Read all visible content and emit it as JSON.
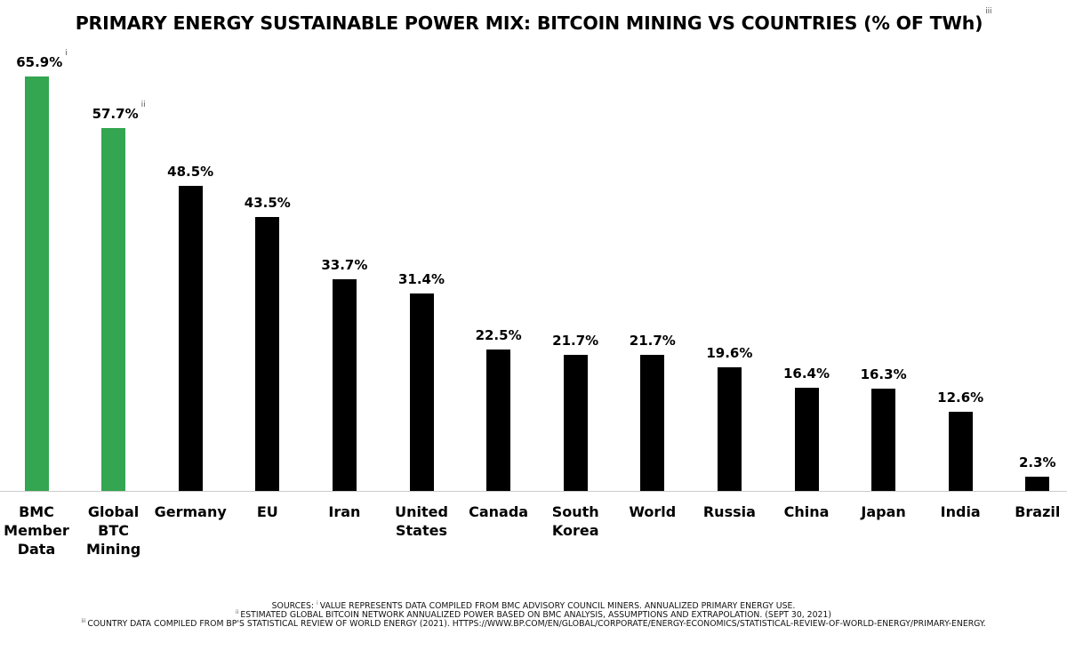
{
  "chart_data": {
    "type": "bar",
    "title": "PRIMARY ENERGY SUSTAINABLE POWER MIX: BITCOIN MINING VS COUNTRIES (% OF TWh)",
    "title_note": "iii",
    "categories": [
      "BMC Member Data",
      "Global BTC Mining",
      "Germany",
      "EU",
      "Iran",
      "United States",
      "Canada",
      "South Korea",
      "World",
      "Russia",
      "China",
      "Japan",
      "India",
      "Brazil"
    ],
    "values": [
      65.9,
      57.7,
      48.5,
      43.5,
      33.7,
      31.4,
      22.5,
      21.7,
      21.7,
      19.6,
      16.4,
      16.3,
      12.6,
      2.3
    ],
    "value_labels": [
      "65.9%",
      "57.7%",
      "48.5%",
      "43.5%",
      "33.7%",
      "31.4%",
      "22.5%",
      "21.7%",
      "21.7%",
      "19.6%",
      "16.4%",
      "16.3%",
      "12.6%",
      "2.3%"
    ],
    "value_notes": [
      "i",
      "ii",
      null,
      null,
      null,
      null,
      null,
      null,
      null,
      null,
      null,
      null,
      null,
      null
    ],
    "colors": [
      "#34a551",
      "#34a551",
      "#000000",
      "#000000",
      "#000000",
      "#000000",
      "#000000",
      "#000000",
      "#000000",
      "#000000",
      "#000000",
      "#000000",
      "#000000",
      "#000000"
    ],
    "sources_label": "SOURCES:",
    "sources": [
      {
        "mark": "i",
        "text": "VALUE REPRESENTS DATA COMPILED FROM BMC ADVISORY COUNCIL MINERS. ANNUALIZED PRIMARY ENERGY USE."
      },
      {
        "mark": "ii",
        "text": "ESTIMATED GLOBAL BITCOIN NETWORK ANNUALIZED POWER BASED ON BMC ANALYSIS, ASSUMPTIONS AND EXTRAPOLATION. (SEPT 30, 2021)"
      },
      {
        "mark": "iii",
        "text": "COUNTRY DATA COMPILED FROM BP'S STATISTICAL REVIEW OF WORLD ENERGY (2021). HTTPS://WWW.BP.COM/EN/GLOBAL/CORPORATE/ENERGY-ECONOMICS/STATISTICAL-REVIEW-OF-WORLD-ENERGY/PRIMARY-ENERGY."
      }
    ]
  }
}
